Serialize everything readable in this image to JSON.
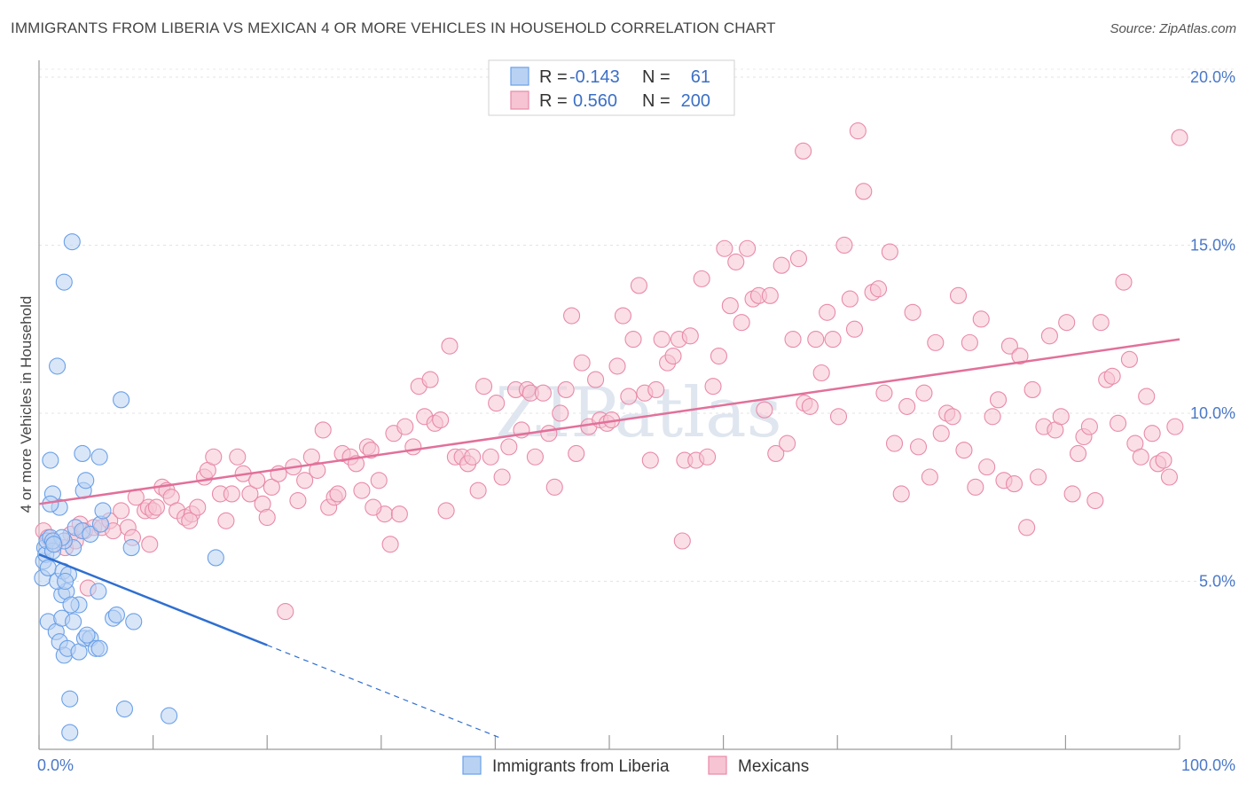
{
  "title": "IMMIGRANTS FROM LIBERIA VS MEXICAN 4 OR MORE VEHICLES IN HOUSEHOLD CORRELATION CHART",
  "source": "Source: ZipAtlas.com",
  "watermark": "ZIPatlas",
  "legend": {
    "row1": {
      "r_label": "R = ",
      "r_value": "-0.143",
      "n_label": "N = ",
      "n_value": "61"
    },
    "row2": {
      "r_label": "R = ",
      "r_value": "0.560",
      "n_label": "N = ",
      "n_value": "200"
    }
  },
  "colors": {
    "liberia": "#6aa0e8",
    "liberia_fill": "#b9d2f3",
    "mexicans": "#e98aa8",
    "mexicans_fill": "#f6c4d3",
    "liberia_line": "#2f6fd0",
    "mexicans_line": "#e2709a",
    "tick": "#4a78c8"
  },
  "chart_data": {
    "type": "scatter",
    "title": "IMMIGRANTS FROM LIBERIA VS MEXICAN 4 OR MORE VEHICLES IN HOUSEHOLD CORRELATION CHART",
    "xlabel": "",
    "ylabel": "4 or more Vehicles in Household",
    "xlim": [
      0,
      100
    ],
    "ylim": [
      0,
      20.5
    ],
    "x_tick_labels": [
      {
        "value": 0,
        "label": "0.0%"
      },
      {
        "value": 100,
        "label": "100.0%"
      }
    ],
    "y_ticks": [
      {
        "value": 5,
        "label": "5.0%"
      },
      {
        "value": 10,
        "label": "10.0%"
      },
      {
        "value": 15,
        "label": "15.0%"
      },
      {
        "value": 20,
        "label": "20.0%"
      }
    ],
    "legend_placement": "top-center",
    "series": [
      {
        "name": "Immigrants from Liberia",
        "r": -0.143,
        "n": 61,
        "trend": {
          "x0": 0,
          "y0": 5.8,
          "x1": 20,
          "y1": 3.1,
          "dashed_to_x": 40.5
        },
        "points": [
          [
            0.3,
            5.1
          ],
          [
            0.4,
            5.6
          ],
          [
            0.5,
            6.0
          ],
          [
            0.6,
            5.8
          ],
          [
            0.7,
            6.2
          ],
          [
            0.8,
            5.4
          ],
          [
            1.0,
            6.3
          ],
          [
            1.2,
            5.9
          ],
          [
            0.8,
            3.8
          ],
          [
            1.5,
            3.5
          ],
          [
            2.0,
            3.9
          ],
          [
            1.8,
            3.2
          ],
          [
            2.2,
            2.8
          ],
          [
            2.5,
            3.0
          ],
          [
            3.0,
            3.8
          ],
          [
            3.5,
            2.9
          ],
          [
            3.5,
            4.3
          ],
          [
            4.0,
            3.3
          ],
          [
            4.5,
            3.3
          ],
          [
            4.2,
            3.4
          ],
          [
            5.0,
            3.0
          ],
          [
            5.3,
            3.0
          ],
          [
            6.5,
            3.9
          ],
          [
            6.8,
            4.0
          ],
          [
            8.3,
            3.8
          ],
          [
            2.0,
            4.6
          ],
          [
            2.4,
            4.7
          ],
          [
            2.8,
            4.3
          ],
          [
            5.2,
            4.7
          ],
          [
            1.6,
            5.0
          ],
          [
            2.1,
            5.3
          ],
          [
            2.6,
            5.2
          ],
          [
            3.0,
            6.0
          ],
          [
            3.2,
            6.6
          ],
          [
            3.8,
            6.5
          ],
          [
            4.5,
            6.4
          ],
          [
            5.4,
            6.7
          ],
          [
            5.6,
            7.1
          ],
          [
            1.8,
            7.2
          ],
          [
            2.2,
            6.2
          ],
          [
            1.2,
            7.6
          ],
          [
            1.0,
            7.3
          ],
          [
            3.9,
            7.7
          ],
          [
            4.1,
            8.0
          ],
          [
            5.3,
            8.7
          ],
          [
            3.8,
            8.8
          ],
          [
            1.0,
            8.6
          ],
          [
            8.1,
            6.0
          ],
          [
            1.6,
            11.4
          ],
          [
            2.2,
            13.9
          ],
          [
            2.9,
            15.1
          ],
          [
            7.2,
            10.4
          ],
          [
            15.5,
            5.7
          ],
          [
            2.0,
            6.3
          ],
          [
            2.3,
            5.0
          ],
          [
            1.2,
            6.2
          ],
          [
            2.7,
            1.5
          ],
          [
            7.5,
            1.2
          ],
          [
            11.4,
            1.0
          ],
          [
            2.7,
            0.5
          ],
          [
            1.3,
            6.1
          ]
        ]
      },
      {
        "name": "Mexicans",
        "r": 0.56,
        "n": 200,
        "trend": {
          "x0": 0,
          "y0": 7.3,
          "x1": 100,
          "y1": 12.2
        },
        "points": [
          [
            0.4,
            6.5
          ],
          [
            0.8,
            6.3
          ],
          [
            1.4,
            6.1
          ],
          [
            2.3,
            6.0
          ],
          [
            2.8,
            6.4
          ],
          [
            3.2,
            6.2
          ],
          [
            3.6,
            6.7
          ],
          [
            4.0,
            6.5
          ],
          [
            4.3,
            4.8
          ],
          [
            4.8,
            6.6
          ],
          [
            5.5,
            6.6
          ],
          [
            6.2,
            6.8
          ],
          [
            6.5,
            6.5
          ],
          [
            7.2,
            7.1
          ],
          [
            7.8,
            6.6
          ],
          [
            8.2,
            6.3
          ],
          [
            8.5,
            7.5
          ],
          [
            9.3,
            7.1
          ],
          [
            9.6,
            7.2
          ],
          [
            10.0,
            7.1
          ],
          [
            10.3,
            7.2
          ],
          [
            10.8,
            7.8
          ],
          [
            11.2,
            7.7
          ],
          [
            11.6,
            7.5
          ],
          [
            12.1,
            7.1
          ],
          [
            12.8,
            6.9
          ],
          [
            13.4,
            7.0
          ],
          [
            13.9,
            7.2
          ],
          [
            14.5,
            8.1
          ],
          [
            14.8,
            8.3
          ],
          [
            15.3,
            8.7
          ],
          [
            15.9,
            7.6
          ],
          [
            16.4,
            6.8
          ],
          [
            16.9,
            7.6
          ],
          [
            17.4,
            8.7
          ],
          [
            17.9,
            8.2
          ],
          [
            18.5,
            7.6
          ],
          [
            19.1,
            8.0
          ],
          [
            19.6,
            7.3
          ],
          [
            20.0,
            6.9
          ],
          [
            20.4,
            7.8
          ],
          [
            21.0,
            8.2
          ],
          [
            21.6,
            4.1
          ],
          [
            22.3,
            8.4
          ],
          [
            22.7,
            7.4
          ],
          [
            23.3,
            8.0
          ],
          [
            23.9,
            8.7
          ],
          [
            24.4,
            8.3
          ],
          [
            24.9,
            9.5
          ],
          [
            25.4,
            7.2
          ],
          [
            25.9,
            7.5
          ],
          [
            26.2,
            7.6
          ],
          [
            26.6,
            8.8
          ],
          [
            27.3,
            8.7
          ],
          [
            27.8,
            8.5
          ],
          [
            28.3,
            7.7
          ],
          [
            28.8,
            9.0
          ],
          [
            29.1,
            8.9
          ],
          [
            29.8,
            8.0
          ],
          [
            30.3,
            7.0
          ],
          [
            30.8,
            6.1
          ],
          [
            31.1,
            9.4
          ],
          [
            31.6,
            7.0
          ],
          [
            32.1,
            9.6
          ],
          [
            32.8,
            9.0
          ],
          [
            33.3,
            10.8
          ],
          [
            33.8,
            9.9
          ],
          [
            34.3,
            11.0
          ],
          [
            34.7,
            9.7
          ],
          [
            35.2,
            9.8
          ],
          [
            35.7,
            7.1
          ],
          [
            36.0,
            12.0
          ],
          [
            36.5,
            8.7
          ],
          [
            37.1,
            8.7
          ],
          [
            37.6,
            8.5
          ],
          [
            38.0,
            8.7
          ],
          [
            38.5,
            7.7
          ],
          [
            39.0,
            10.8
          ],
          [
            39.6,
            8.7
          ],
          [
            40.1,
            10.3
          ],
          [
            40.6,
            8.1
          ],
          [
            41.2,
            9.0
          ],
          [
            41.8,
            10.7
          ],
          [
            42.3,
            9.5
          ],
          [
            42.8,
            10.7
          ],
          [
            43.1,
            10.6
          ],
          [
            43.5,
            8.7
          ],
          [
            44.2,
            10.6
          ],
          [
            44.7,
            9.4
          ],
          [
            45.2,
            7.8
          ],
          [
            45.7,
            10.0
          ],
          [
            46.2,
            10.7
          ],
          [
            46.7,
            12.9
          ],
          [
            47.1,
            8.8
          ],
          [
            47.6,
            11.5
          ],
          [
            48.2,
            9.6
          ],
          [
            48.8,
            11.0
          ],
          [
            49.2,
            9.8
          ],
          [
            49.8,
            9.7
          ],
          [
            50.2,
            9.8
          ],
          [
            50.7,
            11.4
          ],
          [
            51.2,
            12.9
          ],
          [
            51.7,
            10.5
          ],
          [
            52.1,
            12.2
          ],
          [
            52.6,
            13.8
          ],
          [
            53.1,
            10.6
          ],
          [
            53.6,
            8.6
          ],
          [
            54.1,
            10.7
          ],
          [
            54.6,
            12.2
          ],
          [
            55.1,
            11.5
          ],
          [
            55.6,
            11.7
          ],
          [
            56.1,
            12.2
          ],
          [
            56.6,
            8.6
          ],
          [
            57.1,
            12.3
          ],
          [
            57.6,
            8.6
          ],
          [
            58.1,
            14.0
          ],
          [
            58.6,
            8.7
          ],
          [
            59.1,
            10.8
          ],
          [
            59.6,
            11.7
          ],
          [
            60.1,
            14.9
          ],
          [
            60.6,
            13.2
          ],
          [
            61.1,
            14.5
          ],
          [
            61.6,
            12.7
          ],
          [
            62.1,
            14.9
          ],
          [
            62.6,
            13.4
          ],
          [
            63.1,
            13.5
          ],
          [
            63.6,
            10.1
          ],
          [
            64.1,
            13.5
          ],
          [
            64.6,
            8.8
          ],
          [
            65.1,
            14.4
          ],
          [
            65.6,
            9.1
          ],
          [
            66.1,
            12.2
          ],
          [
            66.6,
            14.6
          ],
          [
            67.1,
            10.3
          ],
          [
            67.6,
            10.2
          ],
          [
            68.1,
            12.2
          ],
          [
            68.6,
            11.2
          ],
          [
            69.1,
            13.0
          ],
          [
            69.6,
            12.2
          ],
          [
            70.1,
            9.9
          ],
          [
            70.6,
            15.0
          ],
          [
            71.1,
            13.4
          ],
          [
            71.5,
            12.5
          ],
          [
            71.8,
            18.4
          ],
          [
            72.3,
            16.6
          ],
          [
            73.1,
            13.6
          ],
          [
            73.6,
            13.7
          ],
          [
            74.1,
            10.6
          ],
          [
            74.6,
            14.8
          ],
          [
            75.0,
            9.1
          ],
          [
            75.6,
            7.6
          ],
          [
            76.1,
            10.2
          ],
          [
            76.6,
            13.0
          ],
          [
            77.1,
            9.0
          ],
          [
            77.6,
            10.6
          ],
          [
            78.1,
            8.1
          ],
          [
            78.6,
            12.1
          ],
          [
            79.1,
            9.4
          ],
          [
            79.6,
            10.0
          ],
          [
            80.1,
            9.9
          ],
          [
            80.6,
            13.5
          ],
          [
            81.1,
            8.9
          ],
          [
            81.6,
            12.1
          ],
          [
            82.1,
            7.8
          ],
          [
            82.6,
            12.8
          ],
          [
            83.1,
            8.4
          ],
          [
            83.6,
            9.9
          ],
          [
            84.1,
            10.4
          ],
          [
            84.6,
            8.0
          ],
          [
            85.1,
            12.0
          ],
          [
            85.5,
            7.9
          ],
          [
            86.0,
            11.7
          ],
          [
            86.6,
            6.6
          ],
          [
            87.1,
            10.7
          ],
          [
            87.6,
            8.1
          ],
          [
            88.1,
            9.6
          ],
          [
            88.6,
            12.3
          ],
          [
            89.1,
            9.5
          ],
          [
            89.6,
            9.9
          ],
          [
            90.1,
            12.7
          ],
          [
            90.6,
            7.6
          ],
          [
            91.1,
            8.8
          ],
          [
            91.6,
            9.3
          ],
          [
            92.1,
            9.6
          ],
          [
            92.6,
            7.4
          ],
          [
            93.1,
            12.7
          ],
          [
            93.6,
            11.0
          ],
          [
            94.1,
            11.1
          ],
          [
            94.6,
            9.7
          ],
          [
            95.1,
            13.9
          ],
          [
            95.6,
            11.6
          ],
          [
            96.1,
            9.1
          ],
          [
            96.6,
            8.7
          ],
          [
            97.1,
            10.5
          ],
          [
            97.6,
            9.4
          ],
          [
            98.1,
            8.5
          ],
          [
            98.6,
            8.6
          ],
          [
            99.1,
            8.1
          ],
          [
            99.6,
            9.6
          ],
          [
            100.0,
            18.2
          ],
          [
            67.0,
            17.8
          ],
          [
            56.4,
            6.2
          ],
          [
            29.3,
            7.2
          ],
          [
            13.2,
            6.8
          ],
          [
            9.7,
            6.1
          ]
        ]
      }
    ]
  },
  "bottom_legend": {
    "item1": "Immigrants from Liberia",
    "item2": "Mexicans"
  }
}
